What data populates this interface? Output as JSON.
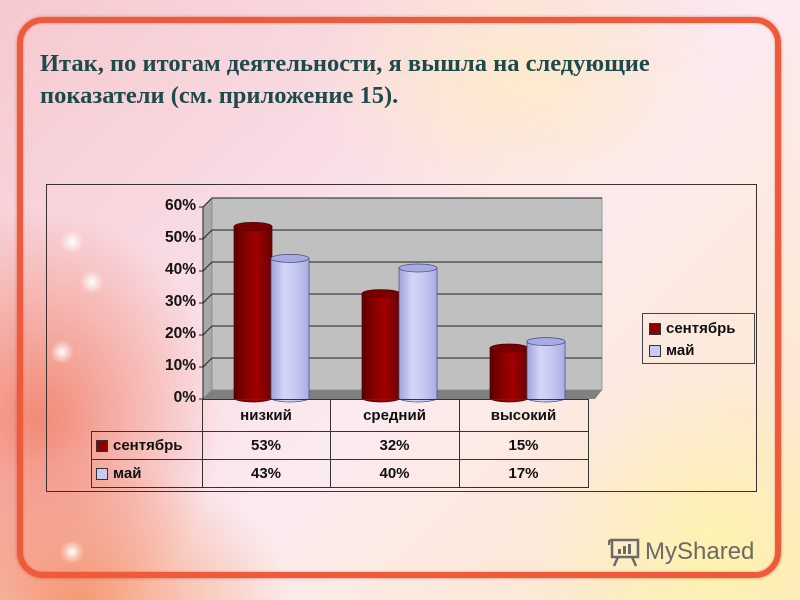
{
  "slide": {
    "title": "Итак, по итогам деятельности, я вышла на следующие показатели (см. приложение 15).",
    "frame_color": "#ee5a3a",
    "title_color": "#1f4a4a"
  },
  "chart_data": {
    "type": "bar",
    "style": "3d-cylinder",
    "title": "",
    "xlabel": "",
    "ylabel": "",
    "categories": [
      "низкий",
      "средний",
      "высокий"
    ],
    "series": [
      {
        "name": "сентябрь",
        "values": [
          53,
          32,
          15
        ],
        "labels": [
          "53%",
          "32%",
          "15%"
        ],
        "color": "#8b0000"
      },
      {
        "name": "май",
        "values": [
          43,
          40,
          17
        ],
        "labels": [
          "43%",
          "40%",
          "17%"
        ],
        "color": "#c8ccf2"
      }
    ],
    "ylim": [
      0,
      60
    ],
    "yticks": [
      "0%",
      "10%",
      "20%",
      "30%",
      "40%",
      "50%",
      "60%"
    ],
    "grid": true,
    "legend_position": "right",
    "data_table": true
  },
  "watermark": {
    "text": "MyShared"
  }
}
